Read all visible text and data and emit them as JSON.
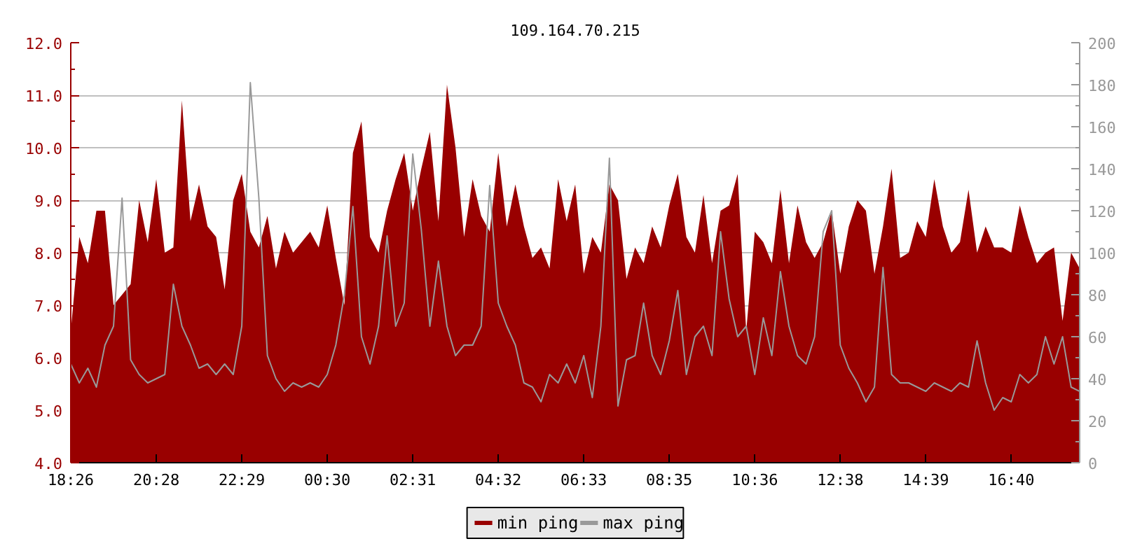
{
  "chart_data": {
    "type": "area",
    "title": "109.164.70.215",
    "categories": [
      "18:26",
      null,
      null,
      null,
      null,
      null,
      null,
      null,
      null,
      null,
      "20:28",
      null,
      null,
      null,
      null,
      null,
      null,
      null,
      null,
      null,
      "22:29",
      null,
      null,
      null,
      null,
      null,
      null,
      null,
      null,
      null,
      "00:30",
      null,
      null,
      null,
      null,
      null,
      null,
      null,
      null,
      null,
      "02:31",
      null,
      null,
      null,
      null,
      null,
      null,
      null,
      null,
      null,
      "04:32",
      null,
      null,
      null,
      null,
      null,
      null,
      null,
      null,
      null,
      "06:33",
      null,
      null,
      null,
      null,
      null,
      null,
      null,
      null,
      null,
      "08:35",
      null,
      null,
      null,
      null,
      null,
      null,
      null,
      null,
      null,
      "10:36",
      null,
      null,
      null,
      null,
      null,
      null,
      null,
      null,
      null,
      "12:38",
      null,
      null,
      null,
      null,
      null,
      null,
      null,
      null,
      null,
      "14:39",
      null,
      null,
      null,
      null,
      null,
      null,
      null,
      null,
      null,
      "16:40",
      null,
      null,
      null,
      null,
      null,
      null,
      null,
      null
    ],
    "ylim": [
      4,
      12
    ],
    "yticks": [
      {
        "value": 4,
        "label": "4.0"
      },
      {
        "value": 4.5,
        "label": null
      },
      {
        "value": 5,
        "label": "5.0"
      },
      {
        "value": 5.5,
        "label": null
      },
      {
        "value": 6,
        "label": "6.0"
      },
      {
        "value": 6.5,
        "label": null
      },
      {
        "value": 7,
        "label": "7.0"
      },
      {
        "value": 7.5,
        "label": null
      },
      {
        "value": 8,
        "label": "8.0"
      },
      {
        "value": 8.5,
        "label": null
      },
      {
        "value": 9,
        "label": "9.0"
      },
      {
        "value": 9.5,
        "label": null
      },
      {
        "value": 10,
        "label": "10.0"
      },
      {
        "value": 10.5,
        "label": null
      },
      {
        "value": 11,
        "label": "11.0"
      },
      {
        "value": 11.5,
        "label": null
      },
      {
        "value": 12,
        "label": "12.0"
      }
    ],
    "y2lim": [
      0,
      200
    ],
    "y2ticks": [
      0,
      {
        "value": 10,
        "label": null
      },
      20,
      {
        "value": 30,
        "label": null
      },
      40,
      {
        "value": 50,
        "label": null
      },
      60,
      {
        "value": 70,
        "label": null
      },
      80,
      {
        "value": 90,
        "label": null
      },
      100,
      {
        "value": 110,
        "label": null
      },
      120,
      {
        "value": 130,
        "label": null
      },
      140,
      {
        "value": 150,
        "label": null
      },
      160,
      {
        "value": 170,
        "label": null
      },
      180,
      {
        "value": 190,
        "label": null
      },
      200
    ],
    "grid": "y",
    "legend": "bottom",
    "series": [
      {
        "name": "min ping",
        "color": "#990000",
        "values": [
          6.5,
          8.3,
          7.8,
          8.8,
          8.8,
          7.0,
          7.2,
          7.4,
          9.0,
          8.2,
          9.4,
          8.0,
          8.1,
          10.9,
          8.6,
          9.3,
          8.5,
          8.3,
          7.3,
          9.0,
          9.5,
          8.4,
          8.1,
          8.7,
          7.7,
          8.4,
          8.0,
          8.2,
          8.4,
          8.1,
          8.9,
          7.9,
          7.0,
          9.9,
          10.5,
          8.3,
          8.0,
          8.8,
          9.4,
          9.9,
          8.8,
          9.6,
          10.3,
          8.6,
          11.2,
          10.0,
          8.3,
          9.4,
          8.7,
          8.4,
          9.9,
          8.5,
          9.3,
          8.5,
          7.9,
          8.1,
          7.7,
          9.4,
          8.6,
          9.3,
          7.6,
          8.3,
          8.0,
          9.3,
          9.0,
          7.5,
          8.1,
          7.8,
          8.5,
          8.1,
          8.9,
          9.5,
          8.3,
          8.0,
          9.1,
          7.8,
          8.8,
          8.9,
          9.5,
          6.5,
          8.4,
          8.2,
          7.8,
          9.2,
          7.8,
          8.9,
          8.2,
          7.9,
          8.2,
          8.8,
          7.6,
          8.5,
          9.0,
          8.8,
          7.6,
          8.5,
          9.6,
          7.9,
          8.0,
          8.6,
          8.3,
          9.4,
          8.5,
          8.0,
          8.2,
          9.2,
          8.0,
          8.5,
          8.1,
          8.1,
          8.0,
          8.9,
          8.3,
          7.8,
          8.0,
          8.1,
          6.7,
          8.0,
          7.7
        ]
      },
      {
        "name": "max ping",
        "type": "line",
        "axis": "y2",
        "color": "#999999",
        "values": [
          47,
          38,
          45,
          36,
          56,
          65,
          126,
          49,
          42,
          38,
          40,
          42,
          85,
          65,
          56,
          45,
          47,
          42,
          47,
          42,
          65,
          181,
          126,
          51,
          40,
          34,
          38,
          36,
          38,
          36,
          42,
          56,
          80,
          122,
          60,
          47,
          65,
          108,
          65,
          76,
          147,
          111,
          65,
          96,
          65,
          51,
          56,
          56,
          65,
          132,
          76,
          65,
          56,
          38,
          36,
          29,
          42,
          38,
          47,
          38,
          51,
          31,
          65,
          145,
          27,
          49,
          51,
          76,
          51,
          42,
          58,
          82,
          42,
          60,
          65,
          51,
          110,
          78,
          60,
          65,
          42,
          69,
          51,
          91,
          65,
          51,
          47,
          60,
          110,
          120,
          56,
          45,
          38,
          29,
          36,
          93,
          42,
          38,
          38,
          36,
          34,
          38,
          36,
          34,
          38,
          36,
          58,
          38,
          25,
          31,
          29,
          42,
          38,
          42,
          60,
          47,
          60,
          36,
          34
        ]
      }
    ]
  }
}
